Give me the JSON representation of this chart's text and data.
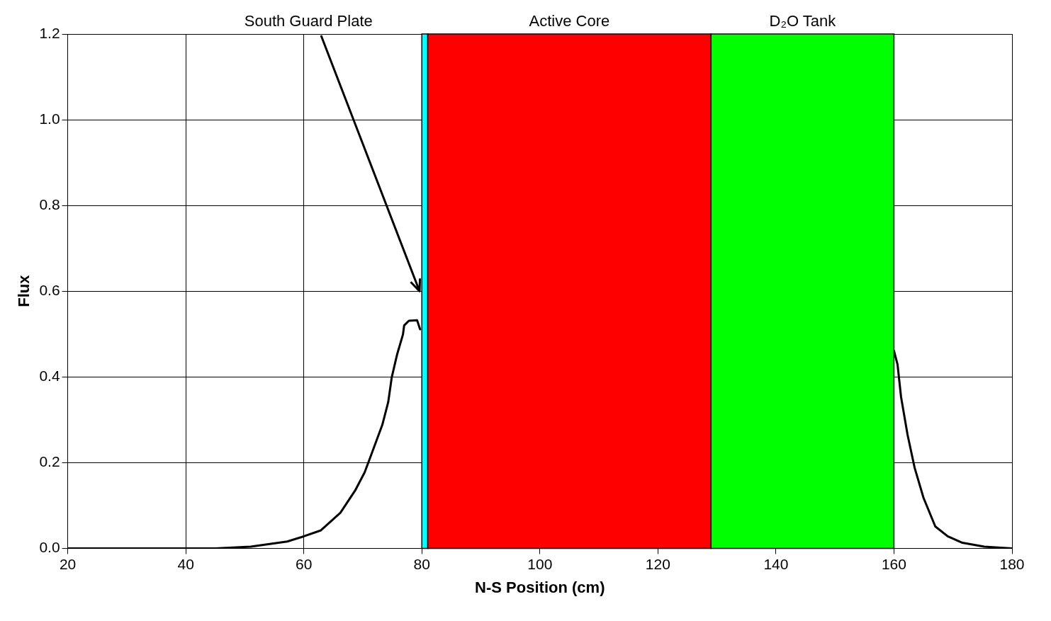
{
  "chart_data": {
    "type": "line",
    "xlabel": "N-S Position (cm)",
    "ylabel": "Flux",
    "xlim": [
      20,
      180
    ],
    "xticks": [
      20,
      40,
      60,
      80,
      100,
      120,
      140,
      160,
      180
    ],
    "ylim": [
      0,
      1.2
    ],
    "yticks": [
      {
        "value": 0,
        "label": "0.0"
      },
      0.2,
      0.4,
      0.6,
      0.8,
      {
        "value": 1,
        "label": "1.0"
      },
      1.2
    ],
    "grid": true,
    "legend": false,
    "marker": "none",
    "line_style": "solid",
    "series": [
      {
        "color": "#000000",
        "x": [
          20,
          30,
          45,
          51,
          57.2,
          60,
          62.9,
          66.2,
          68.7,
          70.3,
          71.2,
          73.3,
          74.3,
          74.9,
          75.8,
          76.8,
          77,
          77.8,
          79.2,
          79.7,
          120,
          160,
          160.6,
          161.2,
          162.3,
          163.5,
          165,
          167,
          169.1,
          171.6,
          175.3,
          178.6,
          180
        ],
        "values": [
          0,
          0,
          0,
          0.004,
          0.016,
          0.028,
          0.042,
          0.083,
          0.135,
          0.177,
          0.21,
          0.288,
          0.341,
          0.399,
          0.452,
          0.499,
          0.52,
          0.531,
          0.532,
          0.511,
          null,
          0.461,
          0.429,
          0.353,
          0.265,
          0.188,
          0.118,
          0.051,
          0.028,
          0.013,
          0.004,
          0.001,
          0
        ]
      }
    ],
    "bands": [
      {
        "axis": "x",
        "from": 80,
        "to": 81,
        "label": "South Guard Plate",
        "color": "#00ffff"
      },
      {
        "axis": "x",
        "from": 81,
        "to": 129,
        "label": "Active Core",
        "color": "#ff0000"
      },
      {
        "axis": "x",
        "from": 129,
        "to": 160,
        "label": "D₂O Tank",
        "color": "#00ff00"
      }
    ]
  }
}
